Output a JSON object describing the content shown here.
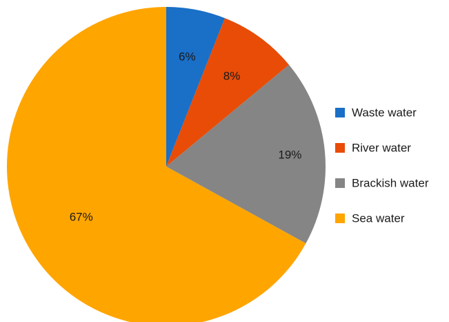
{
  "chart_data": {
    "type": "pie",
    "slices": [
      {
        "label": "Waste water",
        "value": 6,
        "display": "6%",
        "color": "#1a6fc7"
      },
      {
        "label": "River water",
        "value": 8,
        "display": "8%",
        "color": "#e84c07"
      },
      {
        "label": "Brackish water",
        "value": 19,
        "display": "19%",
        "color": "#858585"
      },
      {
        "label": "Sea water",
        "value": 67,
        "display": "67%",
        "color": "#ffa500"
      }
    ],
    "start_angle": "12 o'clock",
    "direction": "clockwise",
    "legend_position": "right"
  }
}
